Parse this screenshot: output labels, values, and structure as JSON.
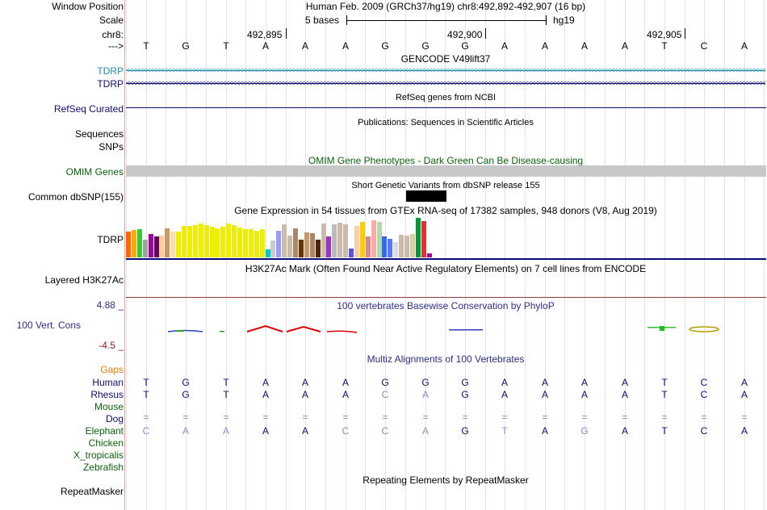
{
  "header": {
    "window_position_label": "Window Position",
    "window_position_value": "Human Feb. 2009 (GRCh37/hg19)   chr8:492,892-492,907 (16 bp)",
    "scale_label": "Scale",
    "scale_text": "5 bases",
    "scale_db": "hg19",
    "chrom_label": "chr8:",
    "arrow_label": "--->",
    "positions": [
      "492,895",
      "492,900",
      "492,905"
    ]
  },
  "bases": [
    "T",
    "G",
    "T",
    "A",
    "A",
    "A",
    "G",
    "G",
    "G",
    "A",
    "A",
    "A",
    "A",
    "T",
    "C",
    "A"
  ],
  "tracks": {
    "gencode": {
      "title": "GENCODE V49lift37",
      "labels": [
        "TDRP",
        "TDRP"
      ],
      "colors": [
        "#1f8fb3",
        "#0c0c78"
      ]
    },
    "refseq": {
      "title": "RefSeq genes from NCBI",
      "label": "RefSeq Curated"
    },
    "publications": {
      "title": "Publications: Sequences in Scientific Articles",
      "labels": [
        "Sequences",
        "SNPs"
      ]
    },
    "omim": {
      "title": "OMIM Gene Phenotypes - Dark Green Can Be Disease-causing",
      "label": "OMIM Genes",
      "color": "#0a640a"
    },
    "dbsnp": {
      "title": "Short Genetic Variants from dbSNP release 155",
      "label": "Common dbSNP(155)"
    },
    "gtex": {
      "title": "Gene Expression in 54 tissues from GTEx RNA-seq of 17382 samples, 948 donors (V8, Aug 2019)",
      "label": "TDRP",
      "values": [
        0.62,
        0.66,
        0.68,
        0.44,
        0.56,
        0.5,
        0.52,
        0.7,
        0.62,
        0.62,
        0.76,
        0.76,
        0.78,
        0.82,
        0.78,
        0.74,
        0.7,
        0.74,
        0.82,
        0.78,
        0.72,
        0.68,
        0.68,
        0.64,
        0.68,
        0.2,
        0.42,
        0.64,
        0.8,
        0.52,
        0.7,
        0.44,
        0.6,
        0.58,
        0.44,
        0.82,
        0.5,
        0.8,
        0.84,
        0.8,
        0.22,
        0.76,
        0.86,
        0.5,
        0.9,
        0.86,
        0.5,
        0.46,
        0.38,
        0.54,
        0.52,
        0.56,
        0.96,
        0.88,
        0.1
      ],
      "colors": [
        "#ff6600",
        "#ffaa00",
        "#33cc33",
        "#a0a0a0",
        "#990099",
        "#660066",
        "#ffcc99",
        "#cc9966",
        "#ffddaa",
        "#eeee00",
        "#eeee00",
        "#eeee00",
        "#eeee00",
        "#eeee00",
        "#eeee00",
        "#eeee00",
        "#eeee00",
        "#eeee00",
        "#eeee00",
        "#eeee00",
        "#eeee00",
        "#eeee00",
        "#eeee00",
        "#eeee00",
        "#eeee00",
        "#00cccc",
        "#cccccc",
        "#9999ff",
        "#ccbbaa",
        "#ccbbaa",
        "#aa8866",
        "#663300",
        "#cc9966",
        "#aa8866",
        "#552200",
        "#ccbbaa",
        "#9933cc",
        "#bbbbbb",
        "#ccbbaa",
        "#ccbbaa",
        "#5555dd",
        "#ffccaa",
        "#ffcc00",
        "#dd8888",
        "#ffaaaa",
        "#aaddaa",
        "#3366ff",
        "#5577ff",
        "#dddddd",
        "#ccbbaa",
        "#ccbbaa",
        "#ddccaa",
        "#009933",
        "#dd3333",
        "#aa00aa"
      ]
    },
    "h3k27ac": {
      "title": "H3K27Ac Mark (Often Found Near Active Regulatory Elements) on 7 cell lines from ENCODE",
      "label": "Layered H3K27Ac"
    },
    "conservation": {
      "title": "100 vertebrates Basewise Conservation by PhyloP",
      "label": "100 Vert. Cons",
      "max": "4.88 _",
      "min": "-4.5 _"
    },
    "multiz": {
      "title": "Multiz Alignments of 100 Vertebrates",
      "gaps_label": "Gaps",
      "species": [
        {
          "name": "Human",
          "bases": [
            "T",
            "G",
            "T",
            "A",
            "A",
            "A",
            "G",
            "G",
            "G",
            "A",
            "A",
            "A",
            "A",
            "T",
            "C",
            "A"
          ],
          "light": [
            0,
            0,
            0,
            0,
            0,
            0,
            0,
            0,
            0,
            0,
            0,
            0,
            0,
            0,
            0,
            0
          ]
        },
        {
          "name": "Rhesus",
          "bases": [
            "T",
            "G",
            "T",
            "A",
            "A",
            "A",
            "C",
            "A",
            "G",
            "A",
            "A",
            "A",
            "A",
            "T",
            "C",
            "A"
          ],
          "light": [
            0,
            0,
            0,
            0,
            0,
            0,
            1,
            1,
            0,
            0,
            0,
            0,
            0,
            0,
            0,
            0
          ]
        },
        {
          "name": "Mouse",
          "bases": [],
          "light": []
        },
        {
          "name": "Dog",
          "bases": [
            "=",
            "=",
            "=",
            "=",
            "=",
            "=",
            "=",
            "=",
            "=",
            "=",
            "=",
            "=",
            "=",
            "=",
            "=",
            "="
          ],
          "light": [
            1,
            1,
            1,
            1,
            1,
            1,
            1,
            1,
            1,
            1,
            1,
            1,
            1,
            1,
            1,
            1
          ]
        },
        {
          "name": "Elephant",
          "bases": [
            "C",
            "A",
            "A",
            "A",
            "A",
            "C",
            "C",
            "A",
            "G",
            "T",
            "A",
            "G",
            "A",
            "T",
            "C",
            "A"
          ],
          "light": [
            1,
            1,
            1,
            0,
            0,
            1,
            1,
            1,
            0,
            1,
            0,
            1,
            0,
            0,
            0,
            0
          ]
        },
        {
          "name": "Chicken",
          "bases": [],
          "light": []
        },
        {
          "name": "X_tropicalis",
          "bases": [],
          "light": []
        },
        {
          "name": "Zebrafish",
          "bases": [],
          "light": []
        }
      ]
    },
    "repeatmasker": {
      "title": "Repeating Elements by RepeatMasker",
      "label": "RepeatMasker"
    }
  }
}
